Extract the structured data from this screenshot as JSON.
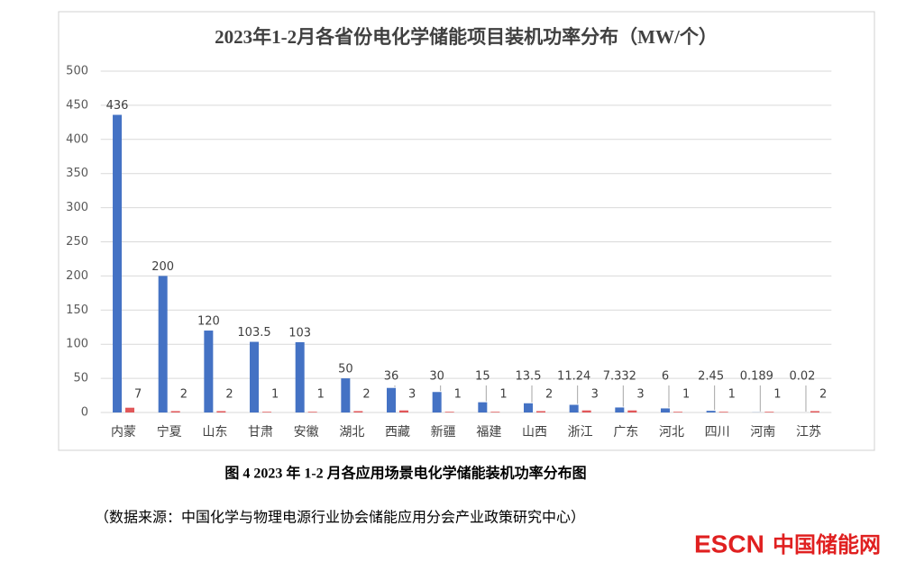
{
  "chart_data": {
    "type": "bar",
    "title": "2023年1-2月各省份电化学储能项目装机功率分布（MW/个）",
    "categories": [
      "内蒙",
      "宁夏",
      "山东",
      "甘肃",
      "安徽",
      "湖北",
      "西藏",
      "新疆",
      "福建",
      "山西",
      "浙江",
      "广东",
      "河北",
      "四川",
      "河南",
      "江苏"
    ],
    "series": [
      {
        "color": "#4472c4",
        "values": [
          436,
          200,
          120,
          103.5,
          103,
          50,
          36,
          30,
          15,
          13.5,
          11.24,
          7.332,
          6,
          2.45,
          0.189,
          0.02
        ]
      },
      {
        "color": "#e15759",
        "values": [
          7,
          2,
          2,
          1,
          1,
          2,
          3,
          1,
          1,
          2,
          3,
          3,
          1,
          1,
          1,
          2
        ]
      }
    ],
    "ylim": [
      0,
      500
    ],
    "yticks": [
      0,
      50,
      100,
      150,
      200,
      250,
      300,
      350,
      400,
      450,
      500
    ],
    "grid": true
  },
  "caption": "图 4 2023 年 1-2 月各应用场景电化学储能装机功率分布图",
  "source": "（数据来源：中国化学与物理电源行业协会储能应用分会产业政策研究中心）",
  "logo": {
    "brand": "ESCN",
    "name": "中国储能网"
  }
}
